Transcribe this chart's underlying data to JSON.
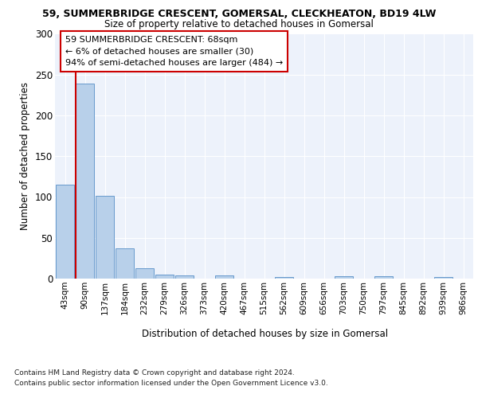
{
  "title1": "59, SUMMERBRIDGE CRESCENT, GOMERSAL, CLECKHEATON, BD19 4LW",
  "title2": "Size of property relative to detached houses in Gomersal",
  "xlabel": "Distribution of detached houses by size in Gomersal",
  "ylabel": "Number of detached properties",
  "categories": [
    "43sqm",
    "90sqm",
    "137sqm",
    "184sqm",
    "232sqm",
    "279sqm",
    "326sqm",
    "373sqm",
    "420sqm",
    "467sqm",
    "515sqm",
    "562sqm",
    "609sqm",
    "656sqm",
    "703sqm",
    "750sqm",
    "797sqm",
    "845sqm",
    "892sqm",
    "939sqm",
    "986sqm"
  ],
  "values": [
    115,
    239,
    101,
    37,
    13,
    5,
    4,
    0,
    4,
    0,
    0,
    2,
    0,
    0,
    3,
    0,
    3,
    0,
    0,
    2,
    0
  ],
  "bar_color": "#b8d0ea",
  "bar_edge_color": "#6699cc",
  "annotation_box_text": "59 SUMMERBRIDGE CRESCENT: 68sqm\n← 6% of detached houses are smaller (30)\n94% of semi-detached houses are larger (484) →",
  "vline_color": "#cc0000",
  "box_edge_color": "#cc0000",
  "background_color": "#edf2fb",
  "ylim": [
    0,
    300
  ],
  "yticks": [
    0,
    50,
    100,
    150,
    200,
    250,
    300
  ],
  "footer1": "Contains HM Land Registry data © Crown copyright and database right 2024.",
  "footer2": "Contains public sector information licensed under the Open Government Licence v3.0."
}
